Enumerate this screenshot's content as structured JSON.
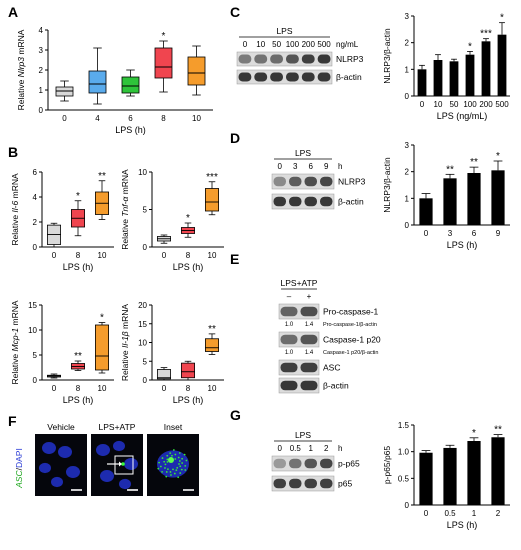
{
  "panel_labels": {
    "A": "A",
    "B": "B",
    "C": "C",
    "D": "D",
    "E": "E",
    "F": "F",
    "G": "G"
  },
  "colors": {
    "c0": "#d9d9d9",
    "c4": "#5aabec",
    "c6": "#2ec43a",
    "c8": "#f0454f",
    "c10": "#f59c2c"
  },
  "chart_data": [
    {
      "id": "A",
      "type": "box",
      "ylabel_parts": [
        "Relative ",
        "Nlrp3",
        " mRNA"
      ],
      "xlabel": "LPS (h)",
      "categories": [
        "0",
        "4",
        "6",
        "8",
        "10"
      ],
      "ylim": [
        0,
        4
      ],
      "yticks": [
        "0",
        "1",
        "2",
        "3",
        "4"
      ],
      "boxes": [
        {
          "min": 0.45,
          "q1": 0.7,
          "median": 0.95,
          "q3": 1.15,
          "max": 1.45,
          "color": "#d9d9d9",
          "sig": ""
        },
        {
          "min": 0.3,
          "q1": 0.85,
          "median": 1.3,
          "q3": 1.95,
          "max": 3.1,
          "color": "#5aabec",
          "sig": ""
        },
        {
          "min": 0.7,
          "q1": 0.85,
          "median": 1.2,
          "q3": 1.65,
          "max": 2.0,
          "color": "#2ec43a",
          "sig": ""
        },
        {
          "min": 0.9,
          "q1": 1.6,
          "median": 2.15,
          "q3": 3.1,
          "max": 3.45,
          "color": "#f0454f",
          "sig": "*"
        },
        {
          "min": 0.75,
          "q1": 1.25,
          "median": 1.85,
          "q3": 2.65,
          "max": 3.2,
          "color": "#f59c2c",
          "sig": ""
        }
      ]
    },
    {
      "id": "B1",
      "type": "box",
      "ylabel_parts": [
        "Relative ",
        "Il-6",
        " mRNA"
      ],
      "xlabel": "LPS (h)",
      "categories": [
        "0",
        "8",
        "10"
      ],
      "ylim": [
        0,
        6
      ],
      "yticks": [
        "0",
        "2",
        "4",
        "6"
      ],
      "boxes": [
        {
          "min": 0,
          "q1": 0.2,
          "median": 1.0,
          "q3": 1.75,
          "max": 1.9,
          "color": "#d9d9d9",
          "sig": ""
        },
        {
          "min": 0.9,
          "q1": 1.6,
          "median": 2.3,
          "q3": 3.0,
          "max": 3.7,
          "color": "#f0454f",
          "sig": "*"
        },
        {
          "min": 2.2,
          "q1": 2.6,
          "median": 3.5,
          "q3": 4.4,
          "max": 5.3,
          "color": "#f59c2c",
          "sig": "**"
        }
      ]
    },
    {
      "id": "B2",
      "type": "box",
      "ylabel_parts": [
        "Relative ",
        "Tnf-α",
        " mRNA"
      ],
      "xlabel": "LPS (h)",
      "categories": [
        "0",
        "8",
        "10"
      ],
      "ylim": [
        0,
        10
      ],
      "yticks": [
        "0",
        "5",
        "10"
      ],
      "boxes": [
        {
          "min": 0.5,
          "q1": 0.8,
          "median": 1.1,
          "q3": 1.4,
          "max": 1.6,
          "color": "#d9d9d9",
          "sig": ""
        },
        {
          "min": 1.3,
          "q1": 1.8,
          "median": 2.2,
          "q3": 2.6,
          "max": 3.2,
          "color": "#f0454f",
          "sig": "*"
        },
        {
          "min": 4.3,
          "q1": 4.8,
          "median": 6.0,
          "q3": 7.8,
          "max": 8.7,
          "color": "#f59c2c",
          "sig": "***"
        }
      ]
    },
    {
      "id": "B3",
      "type": "box",
      "ylabel_parts": [
        "Relative ",
        "Mcp-1",
        " mRNA"
      ],
      "xlabel": "LPS (h)",
      "categories": [
        "0",
        "8",
        "10"
      ],
      "ylim": [
        0,
        15
      ],
      "yticks": [
        "0",
        "5",
        "10",
        "15"
      ],
      "boxes": [
        {
          "min": 0.4,
          "q1": 0.6,
          "median": 0.8,
          "q3": 0.95,
          "max": 1.2,
          "color": "#d9d9d9",
          "sig": ""
        },
        {
          "min": 1.9,
          "q1": 2.2,
          "median": 2.7,
          "q3": 3.3,
          "max": 3.8,
          "color": "#f0454f",
          "sig": "**"
        },
        {
          "min": 1.4,
          "q1": 2.0,
          "median": 4.8,
          "q3": 11.0,
          "max": 11.5,
          "color": "#f59c2c",
          "sig": "*"
        }
      ]
    },
    {
      "id": "B4",
      "type": "box",
      "ylabel_parts": [
        "Relative ",
        "Il-1β",
        " mRNA"
      ],
      "xlabel": "LPS (h)",
      "categories": [
        "0",
        "8",
        "10"
      ],
      "ylim": [
        0,
        20
      ],
      "yticks": [
        "0",
        "5",
        "10",
        "15",
        "20"
      ],
      "boxes": [
        {
          "min": 0,
          "q1": 0.3,
          "median": 0.6,
          "q3": 2.8,
          "max": 3.3,
          "color": "#d9d9d9",
          "sig": ""
        },
        {
          "min": 0,
          "q1": 0.6,
          "median": 2.2,
          "q3": 4.5,
          "max": 5.0,
          "color": "#f0454f",
          "sig": ""
        },
        {
          "min": 6.8,
          "q1": 7.6,
          "median": 8.6,
          "q3": 11.0,
          "max": 12.3,
          "color": "#f59c2c",
          "sig": "**"
        }
      ]
    },
    {
      "id": "C",
      "type": "bar",
      "ylabel": "NLRP3/β-actin",
      "xlabel": "LPS (ng/mL)",
      "categories": [
        "0",
        "10",
        "50",
        "100",
        "200",
        "500"
      ],
      "values": [
        1.0,
        1.35,
        1.3,
        1.55,
        2.05,
        2.3
      ],
      "errors": [
        0.15,
        0.2,
        0.08,
        0.12,
        0.1,
        0.45
      ],
      "sig": [
        "",
        "",
        "",
        "*",
        "***",
        "*"
      ],
      "ylim": [
        0,
        3
      ],
      "yticks": [
        "0",
        "1",
        "2",
        "3"
      ]
    },
    {
      "id": "D",
      "type": "bar",
      "ylabel": "NLRP3/β-actin",
      "xlabel": "LPS (h)",
      "categories": [
        "0",
        "3",
        "6",
        "9"
      ],
      "values": [
        1.0,
        1.75,
        1.95,
        2.05
      ],
      "errors": [
        0.18,
        0.15,
        0.22,
        0.35
      ],
      "sig": [
        "",
        "**",
        "**",
        "*"
      ],
      "ylim": [
        0,
        3
      ],
      "yticks": [
        "0",
        "1",
        "2",
        "3"
      ]
    },
    {
      "id": "G",
      "type": "bar",
      "ylabel": "p-p65/p65",
      "xlabel": "LPS (h)",
      "categories": [
        "0",
        "0.5",
        "1",
        "2"
      ],
      "values": [
        0.98,
        1.07,
        1.2,
        1.27
      ],
      "errors": [
        0.04,
        0.05,
        0.06,
        0.05
      ],
      "sig": [
        "",
        "",
        "*",
        "**"
      ],
      "ylim": [
        0,
        1.5
      ],
      "yticks": [
        "0",
        "0.5",
        "1.0",
        "1.5"
      ]
    }
  ],
  "blots": {
    "C": {
      "treatment": "LPS",
      "unit": "ng/mL",
      "lanes": [
        "0",
        "10",
        "50",
        "100",
        "200",
        "500"
      ],
      "bands": [
        "NLRP3",
        "β-actin"
      ]
    },
    "D": {
      "treatment": "LPS",
      "unit": "h",
      "lanes": [
        "0",
        "3",
        "6",
        "9"
      ],
      "bands": [
        "NLRP3",
        "β-actin"
      ]
    },
    "E": {
      "treatment": "LPS+ATP",
      "lanes": [
        "–",
        "+"
      ],
      "bands": [
        "Pro-caspase-1",
        "Caspase-1 p20",
        "ASC",
        "β-actin"
      ],
      "quant": [
        {
          "values": [
            "1.0",
            "1.4"
          ],
          "label": "Pro-caspase-1/β-actin"
        },
        {
          "values": [
            "1.0",
            "1.4"
          ],
          "label": "Caspase-1 p20/β-actin"
        }
      ]
    },
    "G": {
      "treatment": "LPS",
      "unit": "h",
      "lanes": [
        "0",
        "0.5",
        "1",
        "2"
      ],
      "bands": [
        "p-p65",
        "p65"
      ]
    }
  },
  "imaging": {
    "ylabel_asc": "ASC",
    "ylabel_dapi": "DAPI",
    "slash": "/",
    "panels": [
      "Vehicle",
      "LPS+ATP",
      "Inset"
    ]
  }
}
